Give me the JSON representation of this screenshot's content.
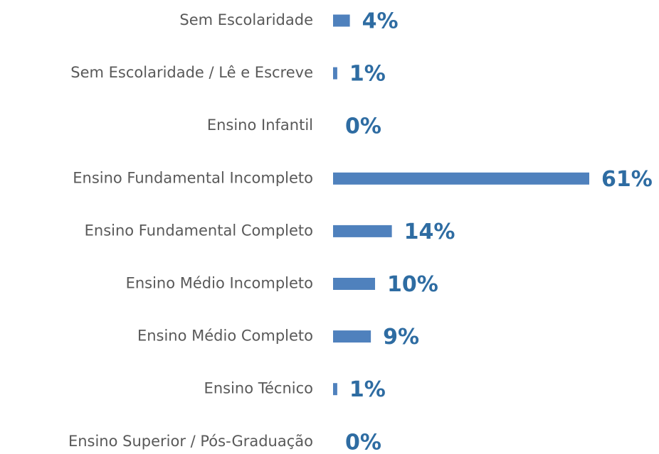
{
  "chart_data": {
    "type": "barh",
    "categories": [
      "Sem Escolaridade",
      "Sem Escolaridade / Lê e Escreve",
      "Ensino Infantil",
      "Ensino Fundamental Incompleto",
      "Ensino Fundamental Completo",
      "Ensino Médio Incompleto",
      "Ensino Médio Completo",
      "Ensino Técnico",
      "Ensino Superior / Pós-Graduação"
    ],
    "values": [
      4,
      1,
      0,
      61,
      14,
      10,
      9,
      1,
      0
    ],
    "value_labels": [
      "4%",
      "1%",
      "0%",
      "61%",
      "14%",
      "10%",
      "9%",
      "1%",
      "0%"
    ],
    "color": "#4f81bd",
    "label_color": "#2e6ca2"
  }
}
